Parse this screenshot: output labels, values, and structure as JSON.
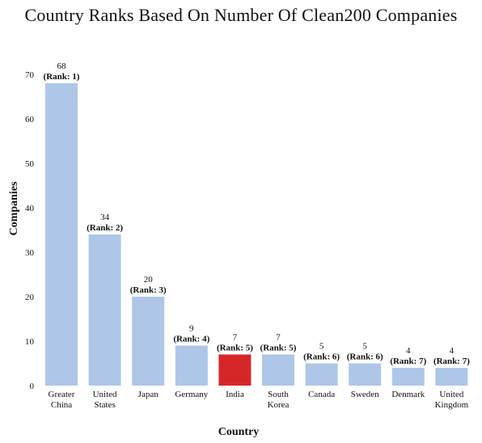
{
  "chart_data": {
    "type": "bar",
    "title": "Country Ranks Based On Number Of Clean200 Companies",
    "xlabel": "Country",
    "ylabel": "Companies",
    "ylim": [
      0,
      74
    ],
    "yticks": [
      0,
      10,
      20,
      30,
      40,
      50,
      60,
      70
    ],
    "grid": false,
    "categories": [
      [
        "Greater",
        "China"
      ],
      [
        "United",
        "States"
      ],
      [
        "Japan"
      ],
      [
        "Germany"
      ],
      [
        "India"
      ],
      [
        "South",
        "Korea"
      ],
      [
        "Canada"
      ],
      [
        "Sweden"
      ],
      [
        "Denmark"
      ],
      [
        "United",
        "Kingdom"
      ]
    ],
    "values": [
      68,
      34,
      20,
      9,
      7,
      7,
      5,
      5,
      4,
      4
    ],
    "ranks": [
      "(Rank: 1)",
      "(Rank: 2)",
      "(Rank: 3)",
      "(Rank: 4)",
      "(Rank: 5)",
      "(Rank: 5)",
      "(Rank: 6)",
      "(Rank: 6)",
      "(Rank: 7)",
      "(Rank: 7)"
    ],
    "highlight": "India",
    "colors": {
      "default": "#aec7e8",
      "highlight": "#d62728"
    }
  }
}
